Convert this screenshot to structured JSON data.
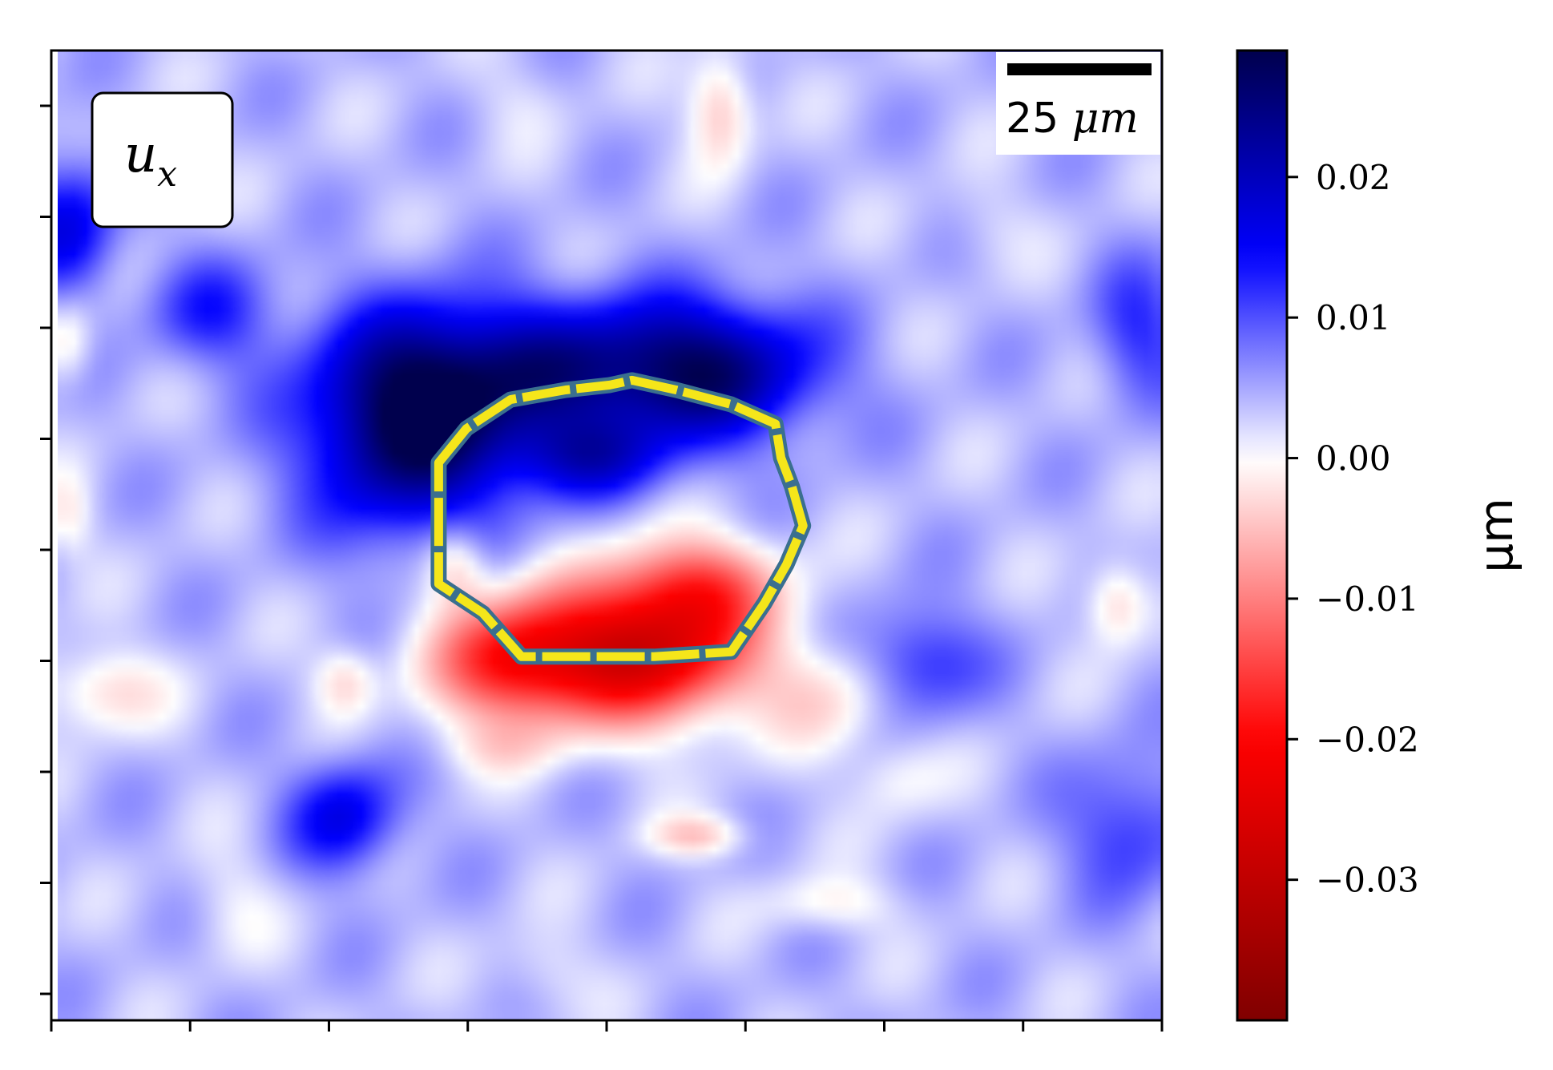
{
  "chart_data": {
    "type": "heatmap",
    "title": "",
    "field_label": {
      "main": "u",
      "sub": "x"
    },
    "scalebar": {
      "value": "25",
      "unit": "μm"
    },
    "colorbar": {
      "label": "μm",
      "vmin": -0.04,
      "vmax": 0.029,
      "ticks": [
        0.02,
        0.01,
        0.0,
        -0.01,
        -0.02,
        -0.03
      ],
      "tick_labels": [
        "0.02",
        "0.01",
        "0.00",
        "−0.01",
        "−0.02",
        "−0.03"
      ],
      "colors": {
        "low": "#800000",
        "mid_low": "#ff0000",
        "center": "#ffffff",
        "mid_high": "#0000ff",
        "high": "#00004d"
      }
    },
    "x_ticks": 9,
    "y_ticks": 9,
    "x_tick_labels": [],
    "y_tick_labels": [],
    "grid": false,
    "contour_color": "#f5e61a",
    "contour_edge_color": "#3a6f8f",
    "features": {
      "background": 0.004,
      "blobs": [
        {
          "x": 0.32,
          "y": 0.39,
          "sx": 0.065,
          "sy": 0.075,
          "v": 0.024
        },
        {
          "x": 0.44,
          "y": 0.33,
          "sx": 0.1,
          "sy": 0.05,
          "v": 0.016
        },
        {
          "x": 0.59,
          "y": 0.33,
          "sx": 0.07,
          "sy": 0.05,
          "v": 0.018
        },
        {
          "x": 0.48,
          "y": 0.42,
          "sx": 0.05,
          "sy": 0.03,
          "v": 0.012
        },
        {
          "x": 0.01,
          "y": 0.18,
          "sx": 0.03,
          "sy": 0.05,
          "v": 0.012
        },
        {
          "x": 0.14,
          "y": 0.27,
          "sx": 0.04,
          "sy": 0.04,
          "v": 0.008
        },
        {
          "x": 0.26,
          "y": 0.79,
          "sx": 0.035,
          "sy": 0.04,
          "v": 0.012
        },
        {
          "x": 0.78,
          "y": 0.63,
          "sx": 0.04,
          "sy": 0.04,
          "v": 0.009
        },
        {
          "x": 0.97,
          "y": 0.8,
          "sx": 0.04,
          "sy": 0.05,
          "v": 0.008
        },
        {
          "x": 0.98,
          "y": 0.29,
          "sx": 0.03,
          "sy": 0.05,
          "v": 0.008
        },
        {
          "x": 0.53,
          "y": 0.62,
          "sx": 0.07,
          "sy": 0.05,
          "v": -0.03
        },
        {
          "x": 0.41,
          "y": 0.63,
          "sx": 0.05,
          "sy": 0.045,
          "v": -0.02
        },
        {
          "x": 0.58,
          "y": 0.55,
          "sx": 0.05,
          "sy": 0.035,
          "v": -0.014
        },
        {
          "x": 0.36,
          "y": 0.53,
          "sx": 0.02,
          "sy": 0.03,
          "v": -0.009
        },
        {
          "x": 0.7,
          "y": 0.67,
          "sx": 0.04,
          "sy": 0.04,
          "v": -0.006
        },
        {
          "x": 0.6,
          "y": 0.06,
          "sx": 0.02,
          "sy": 0.04,
          "v": -0.009
        },
        {
          "x": 0.26,
          "y": 0.65,
          "sx": 0.02,
          "sy": 0.025,
          "v": -0.007
        },
        {
          "x": 0.96,
          "y": 0.57,
          "sx": 0.02,
          "sy": 0.03,
          "v": -0.008
        },
        {
          "x": 0.04,
          "y": 0.66,
          "sx": 0.04,
          "sy": 0.03,
          "v": -0.007
        },
        {
          "x": 0.58,
          "y": 0.81,
          "sx": 0.03,
          "sy": 0.015,
          "v": -0.008
        },
        {
          "x": 0.7,
          "y": 0.88,
          "sx": 0.04,
          "sy": 0.02,
          "v": -0.005
        },
        {
          "x": 0.01,
          "y": 0.3,
          "sx": 0.015,
          "sy": 0.03,
          "v": -0.006
        },
        {
          "x": 0.01,
          "y": 0.48,
          "sx": 0.015,
          "sy": 0.03,
          "v": -0.005
        },
        {
          "x": 0.4,
          "y": 0.72,
          "sx": 0.04,
          "sy": 0.02,
          "v": -0.004
        },
        {
          "x": 0.76,
          "y": 0.75,
          "sx": 0.03,
          "sy": 0.03,
          "v": -0.004
        },
        {
          "x": 0.42,
          "y": 0.05,
          "sx": 0.03,
          "sy": 0.03,
          "v": -0.002
        },
        {
          "x": 0.84,
          "y": 0.18,
          "sx": 0.03,
          "sy": 0.03,
          "v": -0.002
        },
        {
          "x": 0.16,
          "y": 0.88,
          "sx": 0.03,
          "sy": 0.04,
          "v": -0.003
        },
        {
          "x": 0.44,
          "y": 0.95,
          "sx": 0.03,
          "sy": 0.03,
          "v": -0.003
        }
      ]
    },
    "contour": [
      [
        0.345,
        0.425
      ],
      [
        0.37,
        0.39
      ],
      [
        0.41,
        0.36
      ],
      [
        0.46,
        0.35
      ],
      [
        0.5,
        0.345
      ],
      [
        0.52,
        0.34
      ],
      [
        0.56,
        0.35
      ],
      [
        0.61,
        0.365
      ],
      [
        0.65,
        0.385
      ],
      [
        0.655,
        0.42
      ],
      [
        0.665,
        0.45
      ],
      [
        0.675,
        0.49
      ],
      [
        0.66,
        0.53
      ],
      [
        0.64,
        0.57
      ],
      [
        0.61,
        0.62
      ],
      [
        0.54,
        0.625
      ],
      [
        0.48,
        0.625
      ],
      [
        0.42,
        0.625
      ],
      [
        0.385,
        0.58
      ],
      [
        0.345,
        0.55
      ]
    ]
  }
}
